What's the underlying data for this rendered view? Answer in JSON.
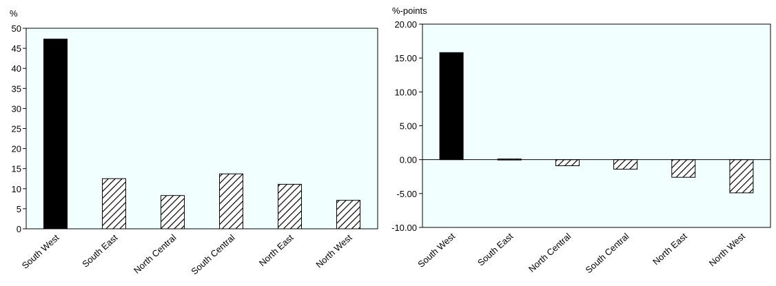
{
  "chart_data": [
    {
      "type": "bar",
      "ylabel": "%",
      "ylim": [
        0,
        50
      ],
      "yticks": [
        "0",
        "5",
        "10",
        "15",
        "20",
        "25",
        "30",
        "35",
        "40",
        "45",
        "50"
      ],
      "categories": [
        "South West",
        "South East",
        "North Central",
        "South Central",
        "North East",
        "North West"
      ],
      "values": [
        47.3,
        12.5,
        8.3,
        13.7,
        11.1,
        7.1
      ],
      "grid": false,
      "legend": "none",
      "colors": {
        "highlight": "#000000",
        "background": "#f2ffff",
        "hatch": "#000000"
      }
    },
    {
      "type": "bar",
      "ylabel": "%-points",
      "ylim": [
        -10,
        20
      ],
      "yticks": [
        "-10.00",
        "-5.00",
        "0.00",
        "5.00",
        "10.00",
        "15.00",
        "20.00"
      ],
      "categories": [
        "South West",
        "South East",
        "North Central",
        "South Central",
        "North East",
        "North West"
      ],
      "values": [
        15.8,
        0.1,
        -0.9,
        -1.4,
        -2.6,
        -4.9
      ],
      "grid": false,
      "legend": "none",
      "colors": {
        "highlight": "#000000",
        "background": "#f2ffff",
        "hatch": "#000000"
      }
    }
  ]
}
